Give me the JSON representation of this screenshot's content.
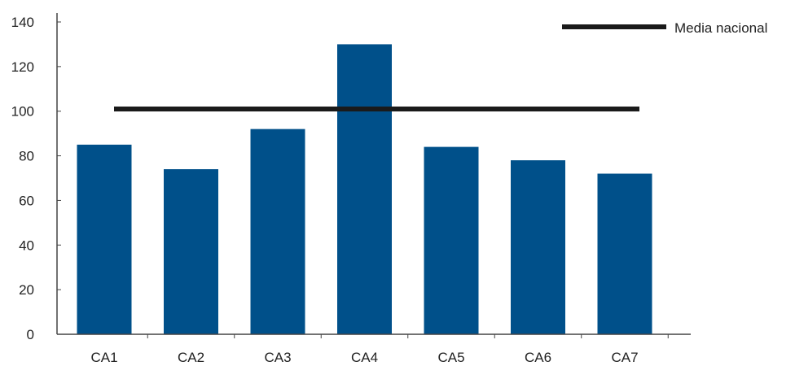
{
  "chart_data": {
    "type": "bar",
    "categories": [
      "CA1",
      "CA2",
      "CA3",
      "CA4",
      "CA5",
      "CA6",
      "CA7"
    ],
    "values": [
      85,
      74,
      92,
      130,
      84,
      78,
      72
    ],
    "reference_line": {
      "name": "Media nacional",
      "value": 101
    },
    "yticks": [
      0,
      20,
      40,
      60,
      80,
      100,
      120,
      140
    ],
    "ylim": [
      0,
      145
    ],
    "title": "",
    "xlabel": "",
    "ylabel": "",
    "grid": false,
    "legend": {
      "placement": "top-right",
      "entries": [
        "Media nacional"
      ]
    },
    "colors": {
      "bar": "#00508a",
      "line": "#1a1a1a",
      "axis": "#444444"
    }
  }
}
